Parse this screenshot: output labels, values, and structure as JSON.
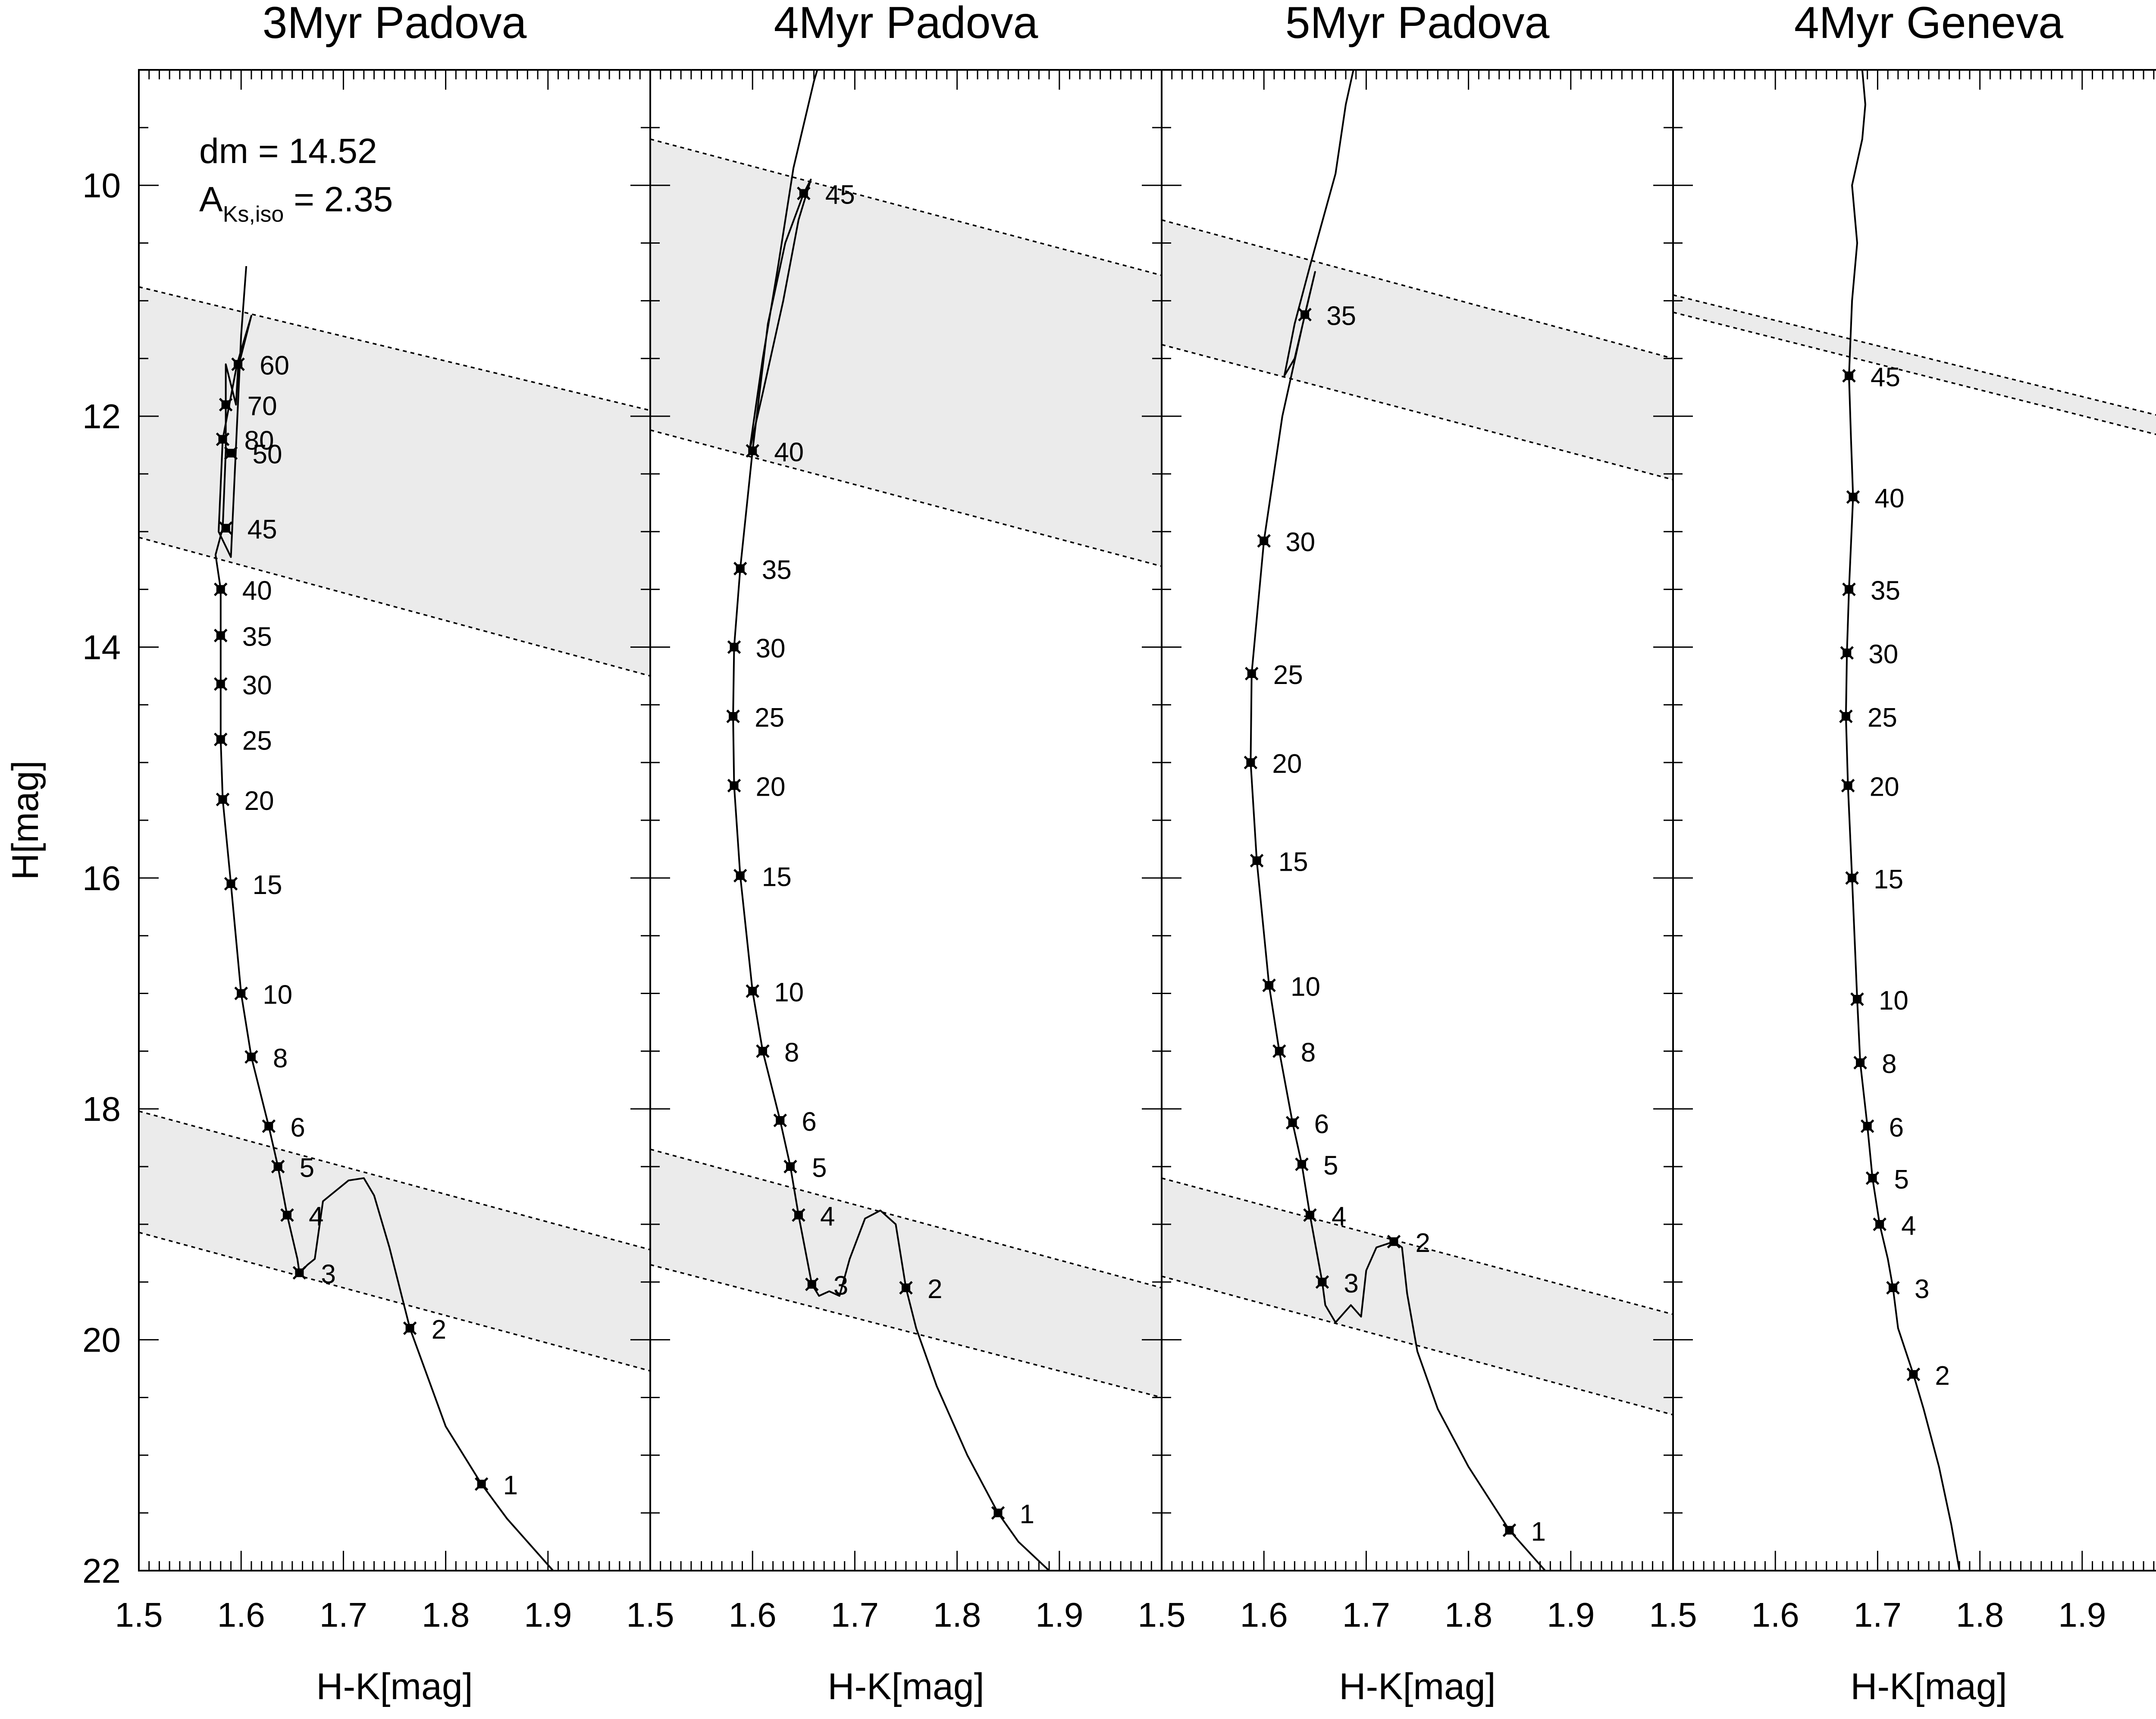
{
  "chart_data": {
    "type": "line",
    "panels": [
      {
        "title": "3Myr Padova",
        "xlabel": "H-K[mag]",
        "ylabel": "H[mag]",
        "xlim": [
          1.5,
          2.0
        ],
        "ylim": [
          22,
          9
        ],
        "xticks": [
          1.5,
          1.6,
          1.7,
          1.8,
          1.9
        ],
        "yticks": [
          10,
          12,
          14,
          16,
          18,
          20,
          22
        ],
        "annotations": [
          {
            "text": "dm = 14.52"
          },
          {
            "text_main": "A",
            "text_sub": "Ks,iso",
            "text_rest": " = 2.35"
          }
        ],
        "shaded_bands": [
          {
            "upper": [
              [
                1.5,
                10.88
              ],
              [
                2.0,
                11.95
              ]
            ],
            "lower": [
              [
                1.5,
                13.05
              ],
              [
                2.0,
                14.25
              ]
            ]
          },
          {
            "upper": [
              [
                1.5,
                18.02
              ],
              [
                2.0,
                19.22
              ]
            ],
            "lower": [
              [
                1.5,
                19.07
              ],
              [
                2.0,
                20.27
              ]
            ]
          }
        ],
        "isochrone": [
          [
            1.905,
            22.0
          ],
          [
            1.86,
            21.55
          ],
          [
            1.835,
            21.25
          ],
          [
            1.8,
            20.75
          ],
          [
            1.765,
            19.9
          ],
          [
            1.745,
            19.2
          ],
          [
            1.73,
            18.75
          ],
          [
            1.72,
            18.6
          ],
          [
            1.705,
            18.62
          ],
          [
            1.68,
            18.8
          ],
          [
            1.672,
            19.3
          ],
          [
            1.665,
            19.35
          ],
          [
            1.657,
            19.42
          ],
          [
            1.655,
            19.3
          ],
          [
            1.645,
            18.92
          ],
          [
            1.636,
            18.5
          ],
          [
            1.627,
            18.15
          ],
          [
            1.61,
            17.55
          ],
          [
            1.6,
            17.0
          ],
          [
            1.59,
            16.05
          ],
          [
            1.582,
            15.32
          ],
          [
            1.58,
            14.8
          ],
          [
            1.58,
            14.32
          ],
          [
            1.58,
            13.9
          ],
          [
            1.58,
            13.5
          ],
          [
            1.575,
            13.2
          ],
          [
            1.582,
            12.97
          ],
          [
            1.585,
            12.3
          ],
          [
            1.585,
            11.55
          ],
          [
            1.595,
            11.9
          ],
          [
            1.597,
            11.58
          ],
          [
            1.61,
            11.13
          ],
          [
            1.596,
            11.55
          ],
          [
            1.582,
            12.2
          ],
          [
            1.578,
            13.0
          ],
          [
            1.59,
            13.22
          ],
          [
            1.6,
            11.3
          ],
          [
            1.605,
            10.7
          ]
        ],
        "mass_points": [
          {
            "mass": "1",
            "x": 1.835,
            "y": 21.25
          },
          {
            "mass": "2",
            "x": 1.765,
            "y": 19.9
          },
          {
            "mass": "3",
            "x": 1.657,
            "y": 19.42
          },
          {
            "mass": "4",
            "x": 1.645,
            "y": 18.92
          },
          {
            "mass": "5",
            "x": 1.636,
            "y": 18.5
          },
          {
            "mass": "6",
            "x": 1.627,
            "y": 18.15
          },
          {
            "mass": "8",
            "x": 1.61,
            "y": 17.55
          },
          {
            "mass": "10",
            "x": 1.6,
            "y": 17.0
          },
          {
            "mass": "15",
            "x": 1.59,
            "y": 16.05
          },
          {
            "mass": "20",
            "x": 1.582,
            "y": 15.32
          },
          {
            "mass": "25",
            "x": 1.58,
            "y": 14.8
          },
          {
            "mass": "30",
            "x": 1.58,
            "y": 14.32
          },
          {
            "mass": "35",
            "x": 1.58,
            "y": 13.9
          },
          {
            "mass": "40",
            "x": 1.58,
            "y": 13.5
          },
          {
            "mass": "45",
            "x": 1.585,
            "y": 12.97
          },
          {
            "mass": "50",
            "x": 1.59,
            "y": 12.32
          },
          {
            "mass": "80",
            "x": 1.582,
            "y": 12.2
          },
          {
            "mass": "70",
            "x": 1.585,
            "y": 11.9
          },
          {
            "mass": "60",
            "x": 1.597,
            "y": 11.55
          }
        ]
      },
      {
        "title": "4Myr Padova",
        "xlabel": "H-K[mag]",
        "xlim": [
          1.5,
          2.0
        ],
        "ylim": [
          22,
          9
        ],
        "xticks": [
          1.5,
          1.6,
          1.7,
          1.8,
          1.9
        ],
        "shaded_bands": [
          {
            "upper": [
              [
                1.5,
                9.6
              ],
              [
                2.0,
                10.78
              ]
            ],
            "lower": [
              [
                1.5,
                12.12
              ],
              [
                2.0,
                13.3
              ]
            ]
          },
          {
            "upper": [
              [
                1.5,
                18.35
              ],
              [
                2.0,
                19.55
              ]
            ],
            "lower": [
              [
                1.5,
                19.35
              ],
              [
                2.0,
                20.5
              ]
            ]
          }
        ],
        "isochrone": [
          [
            1.89,
            22.0
          ],
          [
            1.86,
            21.75
          ],
          [
            1.84,
            21.5
          ],
          [
            1.81,
            21.0
          ],
          [
            1.78,
            20.4
          ],
          [
            1.76,
            19.9
          ],
          [
            1.75,
            19.55
          ],
          [
            1.74,
            19.0
          ],
          [
            1.725,
            18.88
          ],
          [
            1.71,
            18.95
          ],
          [
            1.695,
            19.3
          ],
          [
            1.685,
            19.62
          ],
          [
            1.675,
            19.58
          ],
          [
            1.665,
            19.62
          ],
          [
            1.658,
            19.52
          ],
          [
            1.645,
            18.92
          ],
          [
            1.637,
            18.5
          ],
          [
            1.627,
            18.1
          ],
          [
            1.61,
            17.5
          ],
          [
            1.6,
            16.98
          ],
          [
            1.588,
            15.98
          ],
          [
            1.582,
            15.2
          ],
          [
            1.581,
            14.6
          ],
          [
            1.582,
            14.0
          ],
          [
            1.588,
            13.32
          ],
          [
            1.6,
            12.3
          ],
          [
            1.615,
            11.2
          ],
          [
            1.632,
            10.5
          ],
          [
            1.65,
            10.07
          ],
          [
            1.657,
            9.95
          ],
          [
            1.645,
            10.3
          ],
          [
            1.63,
            11.0
          ],
          [
            1.61,
            11.8
          ],
          [
            1.597,
            12.3
          ],
          [
            1.61,
            11.5
          ],
          [
            1.625,
            10.7
          ],
          [
            1.64,
            9.85
          ],
          [
            1.66,
            9.1
          ],
          [
            1.67,
            8.8
          ]
        ],
        "mass_points": [
          {
            "mass": "1",
            "x": 1.84,
            "y": 21.5
          },
          {
            "mass": "2",
            "x": 1.75,
            "y": 19.55
          },
          {
            "mass": "3",
            "x": 1.658,
            "y": 19.52
          },
          {
            "mass": "4",
            "x": 1.645,
            "y": 18.92
          },
          {
            "mass": "5",
            "x": 1.637,
            "y": 18.5
          },
          {
            "mass": "6",
            "x": 1.627,
            "y": 18.1
          },
          {
            "mass": "8",
            "x": 1.61,
            "y": 17.5
          },
          {
            "mass": "10",
            "x": 1.6,
            "y": 16.98
          },
          {
            "mass": "15",
            "x": 1.588,
            "y": 15.98
          },
          {
            "mass": "20",
            "x": 1.582,
            "y": 15.2
          },
          {
            "mass": "25",
            "x": 1.581,
            "y": 14.6
          },
          {
            "mass": "30",
            "x": 1.582,
            "y": 14.0
          },
          {
            "mass": "35",
            "x": 1.588,
            "y": 13.32
          },
          {
            "mass": "40",
            "x": 1.6,
            "y": 12.3
          },
          {
            "mass": "45",
            "x": 1.65,
            "y": 10.07
          }
        ]
      },
      {
        "title": "5Myr Padova",
        "xlabel": "H-K[mag]",
        "xlim": [
          1.5,
          2.0
        ],
        "ylim": [
          22,
          9
        ],
        "xticks": [
          1.5,
          1.6,
          1.7,
          1.8,
          1.9
        ],
        "shaded_bands": [
          {
            "upper": [
              [
                1.5,
                10.3
              ],
              [
                2.0,
                11.5
              ]
            ],
            "lower": [
              [
                1.5,
                11.38
              ],
              [
                2.0,
                12.55
              ]
            ]
          },
          {
            "upper": [
              [
                1.5,
                18.6
              ],
              [
                2.0,
                19.78
              ]
            ],
            "lower": [
              [
                1.5,
                19.45
              ],
              [
                2.0,
                20.65
              ]
            ]
          }
        ],
        "isochrone": [
          [
            1.875,
            22.0
          ],
          [
            1.84,
            21.65
          ],
          [
            1.8,
            21.1
          ],
          [
            1.77,
            20.6
          ],
          [
            1.75,
            20.1
          ],
          [
            1.74,
            19.6
          ],
          [
            1.735,
            19.2
          ],
          [
            1.727,
            19.15
          ],
          [
            1.71,
            19.2
          ],
          [
            1.7,
            19.4
          ],
          [
            1.695,
            19.8
          ],
          [
            1.685,
            19.7
          ],
          [
            1.67,
            19.85
          ],
          [
            1.66,
            19.7
          ],
          [
            1.657,
            19.5
          ],
          [
            1.645,
            18.92
          ],
          [
            1.637,
            18.48
          ],
          [
            1.628,
            18.12
          ],
          [
            1.615,
            17.5
          ],
          [
            1.605,
            16.93
          ],
          [
            1.593,
            15.85
          ],
          [
            1.587,
            15.0
          ],
          [
            1.588,
            14.23
          ],
          [
            1.6,
            13.08
          ],
          [
            1.618,
            12.0
          ],
          [
            1.64,
            11.12
          ],
          [
            1.65,
            10.75
          ],
          [
            1.63,
            11.5
          ],
          [
            1.62,
            11.65
          ],
          [
            1.63,
            11.2
          ],
          [
            1.645,
            10.7
          ],
          [
            1.67,
            9.9
          ],
          [
            1.68,
            9.3
          ],
          [
            1.69,
            8.9
          ]
        ],
        "mass_points": [
          {
            "mass": "1",
            "x": 1.84,
            "y": 21.65
          },
          {
            "mass": "2",
            "x": 1.727,
            "y": 19.15
          },
          {
            "mass": "3",
            "x": 1.657,
            "y": 19.5
          },
          {
            "mass": "4",
            "x": 1.645,
            "y": 18.92
          },
          {
            "mass": "5",
            "x": 1.637,
            "y": 18.48
          },
          {
            "mass": "6",
            "x": 1.628,
            "y": 18.12
          },
          {
            "mass": "8",
            "x": 1.615,
            "y": 17.5
          },
          {
            "mass": "10",
            "x": 1.605,
            "y": 16.93
          },
          {
            "mass": "15",
            "x": 1.593,
            "y": 15.85
          },
          {
            "mass": "20",
            "x": 1.587,
            "y": 15.0
          },
          {
            "mass": "25",
            "x": 1.588,
            "y": 14.23
          },
          {
            "mass": "30",
            "x": 1.6,
            "y": 13.08
          },
          {
            "mass": "35",
            "x": 1.64,
            "y": 11.12
          }
        ]
      },
      {
        "title": "4Myr Geneva",
        "xlabel": "H-K[mag]",
        "xlim": [
          1.5,
          2.0
        ],
        "ylim": [
          22,
          9
        ],
        "xticks": [
          1.5,
          1.6,
          1.7,
          1.8,
          1.9
        ],
        "shaded_bands": [
          {
            "upper": [
              [
                1.5,
                10.95
              ],
              [
                2.0,
                12.05
              ]
            ],
            "lower": [
              [
                1.5,
                11.1
              ],
              [
                2.0,
                12.22
              ]
            ]
          }
        ],
        "isochrone": [
          [
            1.78,
            22.0
          ],
          [
            1.772,
            21.6
          ],
          [
            1.76,
            21.1
          ],
          [
            1.745,
            20.6
          ],
          [
            1.735,
            20.3
          ],
          [
            1.72,
            19.9
          ],
          [
            1.715,
            19.55
          ],
          [
            1.71,
            19.3
          ],
          [
            1.702,
            19.0
          ],
          [
            1.695,
            18.6
          ],
          [
            1.69,
            18.15
          ],
          [
            1.683,
            17.6
          ],
          [
            1.68,
            17.05
          ],
          [
            1.675,
            16.0
          ],
          [
            1.671,
            15.2
          ],
          [
            1.669,
            14.6
          ],
          [
            1.67,
            14.05
          ],
          [
            1.672,
            13.5
          ],
          [
            1.676,
            12.7
          ],
          [
            1.674,
            12.2
          ],
          [
            1.672,
            11.65
          ],
          [
            1.675,
            11.0
          ],
          [
            1.68,
            10.5
          ],
          [
            1.675,
            10.0
          ],
          [
            1.685,
            9.6
          ],
          [
            1.688,
            9.3
          ],
          [
            1.685,
            9.0
          ],
          [
            1.686,
            8.9
          ]
        ],
        "mass_points": [
          {
            "mass": "2",
            "x": 1.735,
            "y": 20.3
          },
          {
            "mass": "3",
            "x": 1.715,
            "y": 19.55
          },
          {
            "mass": "4",
            "x": 1.702,
            "y": 19.0
          },
          {
            "mass": "5",
            "x": 1.695,
            "y": 18.6
          },
          {
            "mass": "6",
            "x": 1.69,
            "y": 18.15
          },
          {
            "mass": "8",
            "x": 1.683,
            "y": 17.6
          },
          {
            "mass": "10",
            "x": 1.68,
            "y": 17.05
          },
          {
            "mass": "15",
            "x": 1.675,
            "y": 16.0
          },
          {
            "mass": "20",
            "x": 1.671,
            "y": 15.2
          },
          {
            "mass": "25",
            "x": 1.669,
            "y": 14.6
          },
          {
            "mass": "30",
            "x": 1.67,
            "y": 14.05
          },
          {
            "mass": "35",
            "x": 1.672,
            "y": 13.5
          },
          {
            "mass": "40",
            "x": 1.676,
            "y": 12.7
          },
          {
            "mass": "45",
            "x": 1.672,
            "y": 11.65
          }
        ]
      }
    ]
  }
}
